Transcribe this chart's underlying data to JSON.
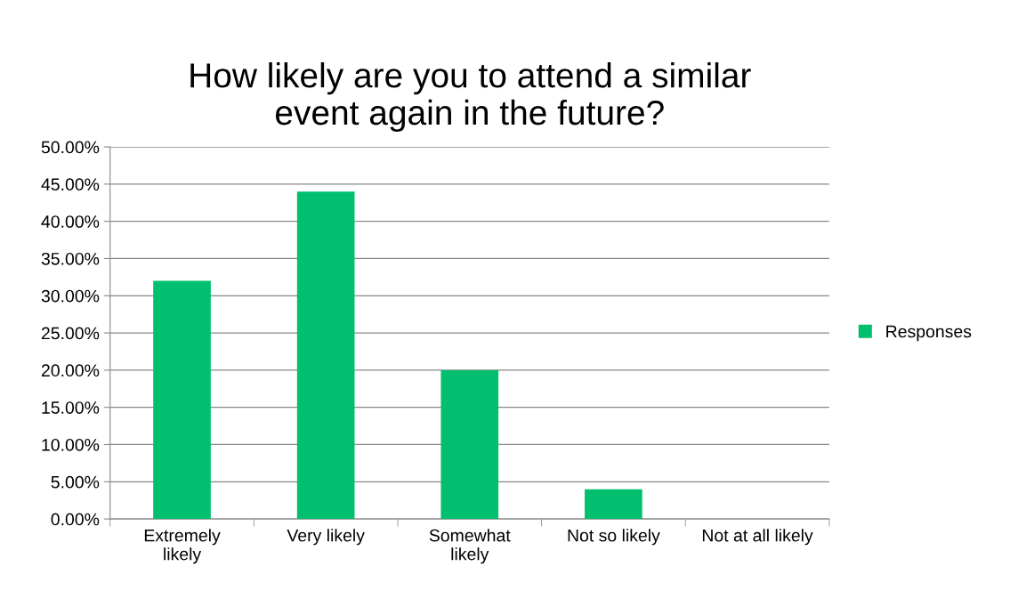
{
  "chart_data": {
    "type": "bar",
    "title": "How likely are you to attend a similar\nevent again in the future?",
    "categories": [
      "Extremely\nlikely",
      "Very likely",
      "Somewhat\nlikely",
      "Not so likely",
      "Not at all likely"
    ],
    "series": [
      {
        "name": "Responses",
        "color": "#00c06f",
        "values": [
          32,
          44,
          20,
          4,
          0
        ]
      }
    ],
    "ylim": [
      0,
      50
    ],
    "yticks": [
      {
        "value": 0,
        "label": "0.00%"
      },
      {
        "value": 5,
        "label": "5.00%"
      },
      {
        "value": 10,
        "label": "10.00%"
      },
      {
        "value": 15,
        "label": "15.00%"
      },
      {
        "value": 20,
        "label": "20.00%"
      },
      {
        "value": 25,
        "label": "25.00%"
      },
      {
        "value": 30,
        "label": "30.00%"
      },
      {
        "value": 35,
        "label": "35.00%"
      },
      {
        "value": 40,
        "label": "40.00%"
      },
      {
        "value": 45,
        "label": "45.00%"
      },
      {
        "value": 50,
        "label": "50.00%"
      }
    ],
    "grid": "y",
    "legend": "right"
  }
}
